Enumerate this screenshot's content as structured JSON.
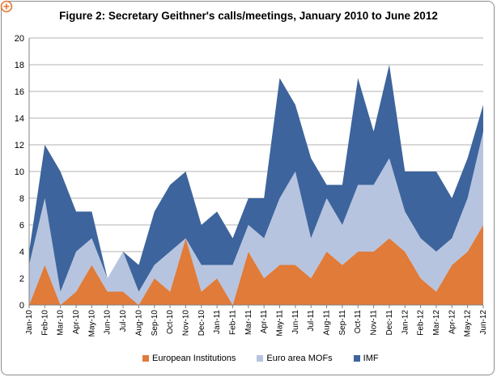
{
  "chart_data": {
    "type": "area",
    "stacked": true,
    "title": "Figure 2: Secretary Geithner's calls/meetings, January  2010 to June 2012",
    "xlabel": "",
    "ylabel": "",
    "ylim": [
      0,
      20
    ],
    "yticks": [
      0,
      2,
      4,
      6,
      8,
      10,
      12,
      14,
      16,
      18,
      20
    ],
    "grid": true,
    "legend_position": "bottom",
    "categories": [
      "Jan-10",
      "Feb-10",
      "Mar-10",
      "Apr-10",
      "May-10",
      "Jun-10",
      "Jul-10",
      "Aug-10",
      "Sep-10",
      "Oct-10",
      "Nov-10",
      "Dec-10",
      "Jan-11",
      "Feb-11",
      "Mar-11",
      "Apr-11",
      "May-11",
      "Jun-11",
      "Jul-11",
      "Aug-11",
      "Sep-11",
      "Oct-11",
      "Nov-11",
      "Dec-11",
      "Jan-12",
      "Feb-12",
      "Mar-12",
      "Apr-12",
      "May-12",
      "Jun-12"
    ],
    "series": [
      {
        "name": "European Institutions",
        "color": "#e07b39",
        "values": [
          0,
          3,
          0,
          1,
          3,
          1,
          1,
          0,
          2,
          1,
          5,
          1,
          2,
          0,
          4,
          2,
          3,
          3,
          2,
          4,
          3,
          4,
          4,
          5,
          4,
          2,
          1,
          3,
          4,
          6
        ]
      },
      {
        "name": "Euro area MOFs",
        "color": "#b7c4e0",
        "values": [
          3,
          5,
          1,
          3,
          2,
          1,
          3,
          1,
          1,
          3,
          0,
          2,
          1,
          3,
          2,
          3,
          5,
          7,
          3,
          4,
          3,
          5,
          5,
          6,
          3,
          3,
          3,
          2,
          4,
          7
        ]
      },
      {
        "name": "IMF",
        "color": "#3d649c",
        "values": [
          1,
          4,
          9,
          3,
          2,
          0,
          0,
          2,
          4,
          5,
          5,
          3,
          4,
          2,
          2,
          3,
          9,
          5,
          6,
          1,
          3,
          8,
          4,
          7,
          3,
          5,
          6,
          3,
          3,
          2
        ]
      }
    ]
  },
  "ui": {
    "corner_icon": "zoom-in-icon",
    "frame_border_color": "#8c8c8c",
    "grid_color": "#b3b3b3"
  }
}
